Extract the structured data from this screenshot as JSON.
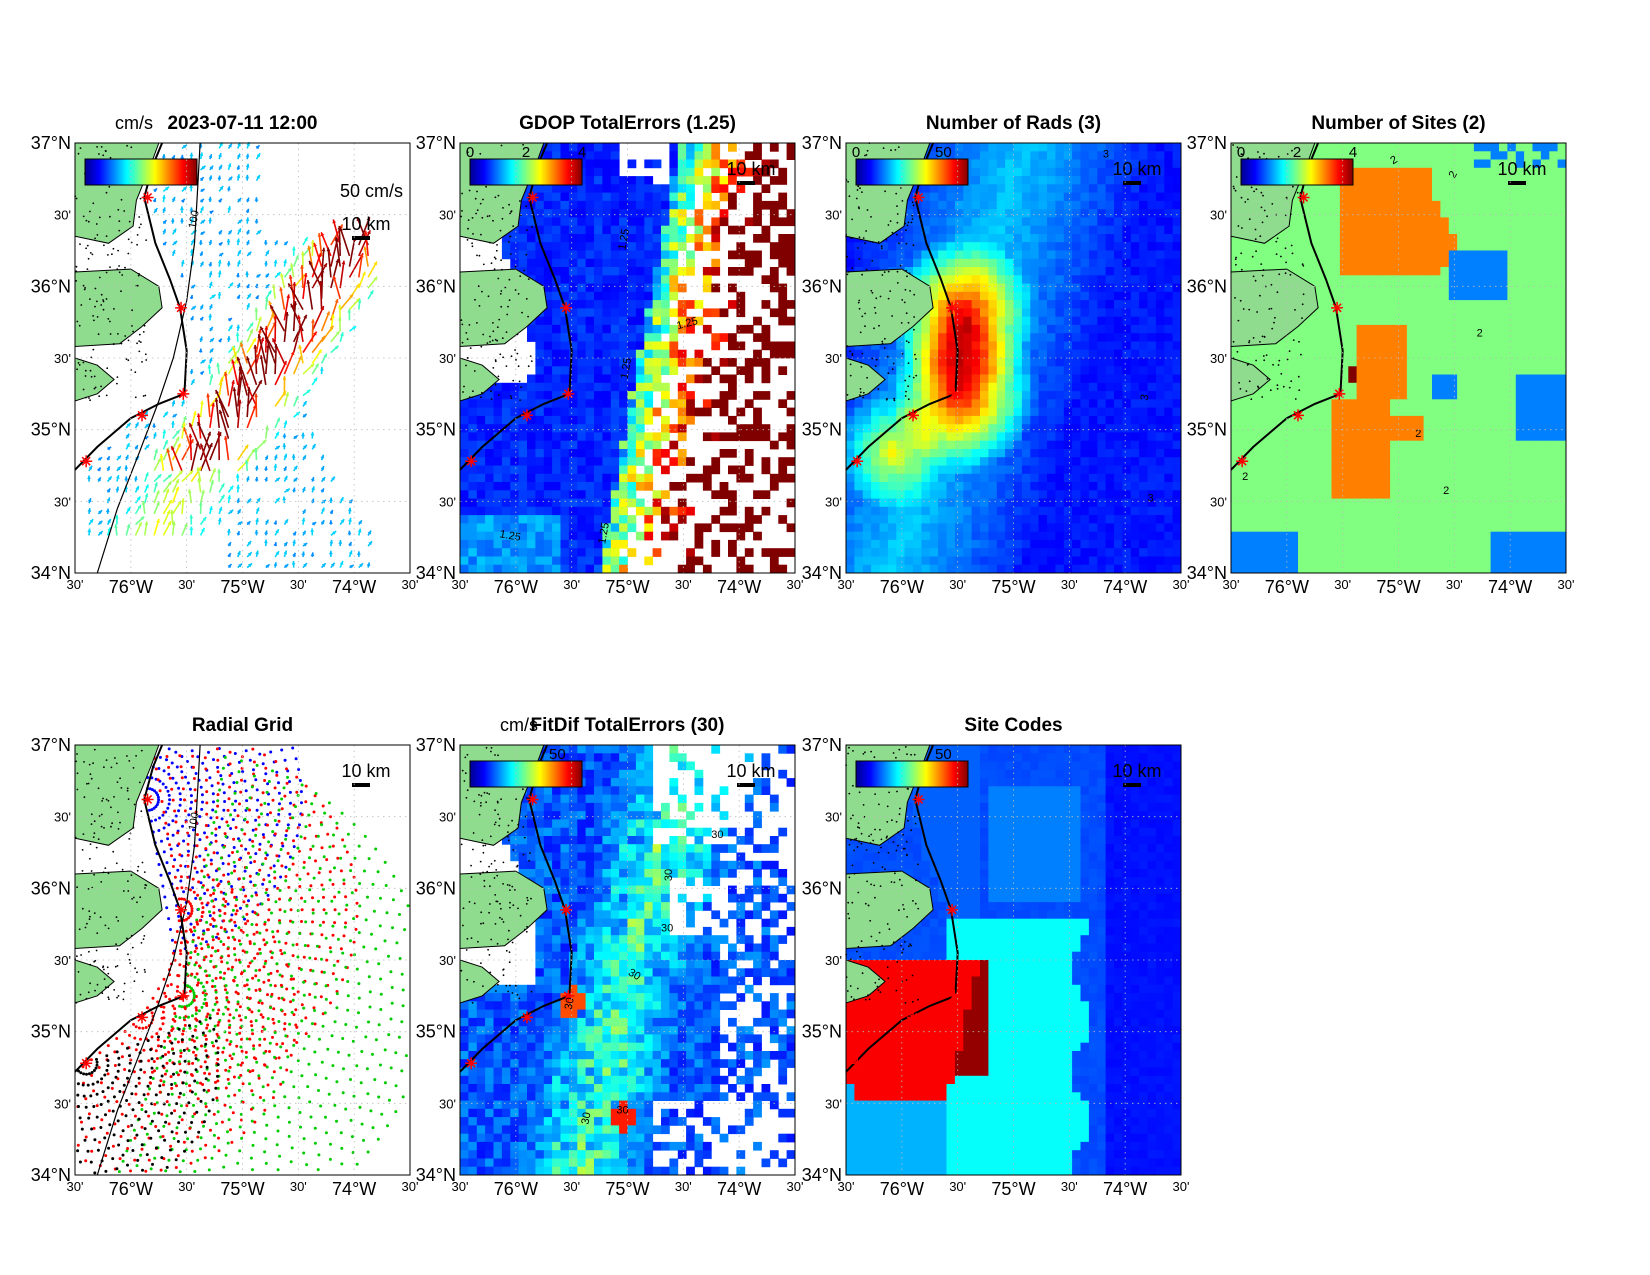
{
  "figure": {
    "lat_ticks": [
      "37°N",
      "30'",
      "36°N",
      "30'",
      "35°N",
      "30'",
      "34°N"
    ],
    "lon_ticks": [
      "30'",
      "76°W",
      "30'",
      "75°W",
      "30'",
      "74°W",
      "30'"
    ],
    "scale_label": "10 km",
    "coast_color": "#8fdc8f",
    "site_marker_color": "#ff0000",
    "isobath_label": "100"
  },
  "panels": [
    {
      "key": "vectors",
      "title": "2023-07-11 12:00",
      "type": "quiver map",
      "colorbar_label": "cm/s",
      "colorbar_ticks": [],
      "reference_vector_label": "50 cm/s",
      "isobath_label": "100",
      "colormap": "jet"
    },
    {
      "key": "gdop",
      "title": "GDOP TotalErrors (1.25)",
      "type": "heatmap",
      "colorbar_ticks": [
        "0",
        "2",
        "4"
      ],
      "contour_label": "1.25",
      "colormap": "jet"
    },
    {
      "key": "nrads",
      "title": "Number of Rads (3)",
      "type": "heatmap",
      "colorbar_ticks": [
        "0",
        "50"
      ],
      "contour_label": "3",
      "colormap": "jet"
    },
    {
      "key": "nsites",
      "title": "Number of Sites (2)",
      "type": "heatmap",
      "colorbar_ticks": [
        "0",
        "2",
        "4"
      ],
      "contour_label": "2",
      "colormap": "jet"
    },
    {
      "key": "radial",
      "title": "Radial Grid",
      "type": "scatter",
      "isobath_label": "100",
      "site_colors": [
        "#0000ff",
        "#ff0000",
        "#00cc00",
        "#ff0000",
        "#000000"
      ]
    },
    {
      "key": "fitdif",
      "title": "FitDif TotalErrors (30)",
      "type": "heatmap",
      "colorbar_label": "cm/s",
      "colorbar_ticks": [
        "50"
      ],
      "contour_label": "30",
      "colormap": "jet"
    },
    {
      "key": "sitecodes",
      "title": "Site Codes",
      "type": "heatmap",
      "colorbar_ticks": [
        "50"
      ],
      "colormap": "jet"
    }
  ],
  "chart_data": [
    {
      "type": "scatter",
      "title": "2023-07-11 12:00",
      "subtype": "quiver",
      "xlim": [
        -76.5,
        -73.5
      ],
      "ylim": [
        34,
        37
      ],
      "xlabel": "",
      "ylabel": "",
      "colorbar_label": "cm/s",
      "reference_vector": "50 cm/s",
      "max_speed_region": {
        "lon": [
          -74.8,
          -74.3
        ],
        "lat": [
          35.4,
          36.1
        ],
        "speed": "high (dark red)"
      },
      "sites": [
        [
          -75.85,
          36.62
        ],
        [
          -75.55,
          35.85
        ],
        [
          -75.53,
          35.25
        ],
        [
          -75.9,
          35.1
        ],
        [
          -76.4,
          34.78
        ]
      ],
      "isobath": "100"
    },
    {
      "type": "heatmap",
      "title": "GDOP TotalErrors (1.25)",
      "xlim": [
        -76.5,
        -73.5
      ],
      "ylim": [
        34,
        37
      ],
      "clim": [
        0,
        4
      ],
      "colorbar_ticks": [
        0,
        2,
        4
      ],
      "contour_level": 1.25
    },
    {
      "type": "heatmap",
      "title": "Number of Rads (3)",
      "xlim": [
        -76.5,
        -73.5
      ],
      "ylim": [
        34,
        37
      ],
      "clim": [
        0,
        50
      ],
      "colorbar_ticks": [
        0,
        50
      ],
      "contour_level": 3
    },
    {
      "type": "heatmap",
      "title": "Number of Sites (2)",
      "xlim": [
        -76.5,
        -73.5
      ],
      "ylim": [
        34,
        37
      ],
      "clim": [
        0,
        4
      ],
      "colorbar_ticks": [
        0,
        2,
        4
      ],
      "contour_level": 2,
      "values_present": [
        1,
        2,
        3,
        4
      ]
    },
    {
      "type": "scatter",
      "title": "Radial Grid",
      "xlim": [
        -76.5,
        -73.5
      ],
      "ylim": [
        34,
        37
      ],
      "series": [
        {
          "name": "",
          "site": [
            -75.85,
            36.62
          ],
          "color": "#0000ff"
        },
        {
          "name": "",
          "site": [
            -75.55,
            35.85
          ],
          "color": "#ff0000"
        },
        {
          "name": "",
          "site": [
            -75.53,
            35.25
          ],
          "color": "#00cc00"
        },
        {
          "name": "",
          "site": [
            -75.9,
            35.1
          ],
          "color": "#ff0000"
        },
        {
          "name": "",
          "site": [
            -76.4,
            34.78
          ],
          "color": "#000000"
        }
      ],
      "isobath": "100"
    },
    {
      "type": "heatmap",
      "title": "FitDif TotalErrors (30)",
      "xlim": [
        -76.5,
        -73.5
      ],
      "ylim": [
        34,
        37
      ],
      "clim": [
        0,
        50
      ],
      "colorbar_label": "cm/s",
      "colorbar_ticks": [
        50
      ],
      "contour_level": 30
    },
    {
      "type": "heatmap",
      "title": "Site Codes",
      "xlim": [
        -76.5,
        -73.5
      ],
      "ylim": [
        34,
        37
      ],
      "clim": [
        0,
        50
      ],
      "colorbar_ticks": [
        50
      ]
    }
  ]
}
